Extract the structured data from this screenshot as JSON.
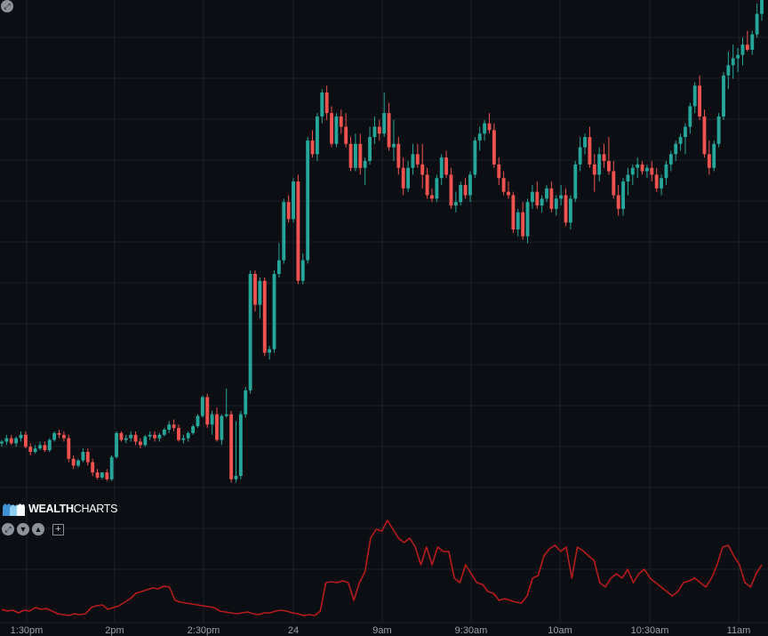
{
  "chart_data": [
    {
      "type": "candlestick",
      "x_tick_labels": [
        "1:30pm",
        "2pm",
        "2:30pm",
        "24",
        "9am",
        "9:30am",
        "10am",
        "10:30am",
        "11am"
      ],
      "y_range": [
        3,
        154
      ],
      "grid": true,
      "colors": {
        "up": "#26a69a",
        "down": "#ef5350",
        "grid": "#1c2029",
        "background": "#0b0e13",
        "axis_text": "#9aa0a8"
      },
      "candles": [
        [
          25.5,
          26.5,
          24.5,
          26
        ],
        [
          26,
          28,
          25,
          27
        ],
        [
          27,
          28,
          25,
          25.5
        ],
        [
          25.5,
          27.5,
          24.5,
          27
        ],
        [
          27,
          29,
          26,
          28
        ],
        [
          28,
          29,
          24,
          24.5
        ],
        [
          24.5,
          25.5,
          22,
          23
        ],
        [
          23,
          25,
          22.5,
          24
        ],
        [
          24,
          26,
          23.5,
          25
        ],
        [
          25,
          26,
          23,
          23.5
        ],
        [
          23.5,
          27,
          23,
          26.5
        ],
        [
          26.5,
          29,
          26,
          28.5
        ],
        [
          28.5,
          29.5,
          27,
          28
        ],
        [
          28,
          29,
          26,
          27
        ],
        [
          27,
          28,
          20,
          21
        ],
        [
          21,
          22,
          18,
          19
        ],
        [
          19,
          21,
          18.5,
          20.5
        ],
        [
          20.5,
          24,
          20,
          23
        ],
        [
          23,
          24,
          19,
          20
        ],
        [
          20,
          21,
          16,
          17
        ],
        [
          17,
          18,
          15,
          15.5
        ],
        [
          15.5,
          17,
          15,
          17
        ],
        [
          17,
          18,
          14.5,
          15
        ],
        [
          15,
          22,
          14.5,
          21.5
        ],
        [
          21.5,
          29,
          21,
          28.5
        ],
        [
          28.5,
          29,
          26,
          26.5
        ],
        [
          26.5,
          28,
          25.5,
          27
        ],
        [
          27,
          29,
          26,
          28
        ],
        [
          28,
          29,
          25,
          26
        ],
        [
          26,
          27,
          24,
          25
        ],
        [
          25,
          28,
          24.5,
          27.5
        ],
        [
          27.5,
          29,
          26.5,
          28
        ],
        [
          28,
          29,
          26,
          27
        ],
        [
          27,
          28.5,
          26,
          28
        ],
        [
          28,
          30,
          27.5,
          29.5
        ],
        [
          29.5,
          32,
          28.5,
          31
        ],
        [
          31,
          32.5,
          29,
          30
        ],
        [
          30,
          31,
          26,
          26.5
        ],
        [
          26.5,
          28,
          25.5,
          27
        ],
        [
          27,
          29,
          26,
          28.5
        ],
        [
          28.5,
          31,
          28,
          30.5
        ],
        [
          30.5,
          34,
          30,
          33.5
        ],
        [
          33.5,
          39.5,
          33,
          39
        ],
        [
          39,
          40,
          30,
          31
        ],
        [
          31,
          35,
          28,
          34
        ],
        [
          34,
          36,
          26,
          26.5
        ],
        [
          26.5,
          34,
          25,
          33.5
        ],
        [
          33.5,
          41.5,
          33,
          34
        ],
        [
          34,
          35,
          14,
          15
        ],
        [
          15,
          32,
          14,
          16
        ],
        [
          16,
          35,
          15,
          34
        ],
        [
          34,
          42,
          33,
          41
        ],
        [
          41,
          76,
          40,
          75
        ],
        [
          75,
          76,
          64,
          66
        ],
        [
          66,
          74,
          62,
          73
        ],
        [
          73,
          74,
          51,
          52
        ],
        [
          52,
          54,
          50,
          53
        ],
        [
          53,
          76,
          52,
          75
        ],
        [
          75,
          84,
          74,
          79
        ],
        [
          79,
          97,
          78,
          96
        ],
        [
          96,
          98,
          90,
          91
        ],
        [
          91,
          103,
          90,
          102
        ],
        [
          102,
          104,
          72,
          73
        ],
        [
          73,
          81,
          72,
          79
        ],
        [
          79,
          115,
          78,
          114
        ],
        [
          114,
          117,
          109,
          110
        ],
        [
          110,
          122,
          108,
          121
        ],
        [
          121,
          129,
          119,
          128
        ],
        [
          128,
          130,
          120,
          122
        ],
        [
          122,
          124,
          112,
          113
        ],
        [
          113,
          122,
          112,
          121
        ],
        [
          121,
          123,
          116,
          118
        ],
        [
          118,
          122,
          112,
          113
        ],
        [
          113,
          115,
          105,
          106
        ],
        [
          106,
          116,
          105,
          113
        ],
        [
          113,
          116,
          104,
          106
        ],
        [
          106,
          109,
          101,
          108
        ],
        [
          108,
          118,
          107,
          115
        ],
        [
          115,
          121,
          113,
          118
        ],
        [
          118,
          120,
          114,
          116
        ],
        [
          116,
          128,
          115,
          122
        ],
        [
          122,
          125,
          111,
          112
        ],
        [
          112,
          120,
          108,
          113
        ],
        [
          113,
          115,
          104,
          106
        ],
        [
          106,
          109,
          98,
          100
        ],
        [
          100,
          108,
          99,
          106
        ],
        [
          106,
          113,
          104,
          110
        ],
        [
          110,
          113,
          106,
          107
        ],
        [
          107,
          113,
          100,
          104
        ],
        [
          104,
          106,
          97,
          98
        ],
        [
          98,
          100,
          96,
          97
        ],
        [
          97,
          104,
          96,
          103
        ],
        [
          103,
          110,
          101,
          109
        ],
        [
          109,
          111,
          103,
          104
        ],
        [
          104,
          106,
          94,
          95
        ],
        [
          95,
          99,
          93,
          96
        ],
        [
          96,
          102,
          95,
          101
        ],
        [
          101,
          103,
          97,
          98
        ],
        [
          98,
          105,
          96,
          104
        ],
        [
          104,
          115,
          103,
          114
        ],
        [
          114,
          118,
          111,
          116
        ],
        [
          116,
          120,
          114,
          119
        ],
        [
          119,
          122,
          116,
          117
        ],
        [
          117,
          119,
          106,
          107
        ],
        [
          107,
          109,
          101,
          103
        ],
        [
          103,
          105,
          98,
          99
        ],
        [
          99,
          102,
          97,
          98
        ],
        [
          98,
          99,
          87,
          88
        ],
        [
          88,
          94,
          86,
          93
        ],
        [
          93,
          96,
          85,
          86
        ],
        [
          86,
          97,
          84,
          96
        ],
        [
          96,
          101,
          94,
          99
        ],
        [
          99,
          102,
          94,
          95
        ],
        [
          95,
          98,
          93,
          97
        ],
        [
          97,
          101,
          96,
          100
        ],
        [
          100,
          102,
          93,
          94
        ],
        [
          94,
          98,
          92,
          97
        ],
        [
          97,
          101,
          95,
          98
        ],
        [
          98,
          100,
          89,
          90
        ],
        [
          90,
          98,
          88,
          97
        ],
        [
          97,
          108,
          96,
          107
        ],
        [
          107,
          115,
          105,
          112
        ],
        [
          112,
          116,
          110,
          115
        ],
        [
          115,
          118,
          106,
          107
        ],
        [
          107,
          110,
          99,
          104
        ],
        [
          104,
          112,
          102,
          110
        ],
        [
          110,
          113,
          106,
          108
        ],
        [
          108,
          115,
          104,
          105
        ],
        [
          105,
          108,
          97,
          98
        ],
        [
          98,
          101,
          92,
          94
        ],
        [
          94,
          103,
          92,
          102
        ],
        [
          102,
          106,
          98,
          104
        ],
        [
          104,
          107,
          101,
          106
        ],
        [
          106,
          109,
          103,
          107
        ],
        [
          107,
          108,
          104,
          105
        ],
        [
          105,
          107,
          103,
          106
        ],
        [
          106,
          108,
          102,
          104
        ],
        [
          104,
          106,
          99,
          100
        ],
        [
          100,
          104,
          98,
          103
        ],
        [
          103,
          108,
          101,
          107
        ],
        [
          107,
          111,
          105,
          110
        ],
        [
          110,
          114,
          108,
          113
        ],
        [
          113,
          116,
          111,
          115
        ],
        [
          115,
          119,
          110,
          118
        ],
        [
          118,
          125,
          116,
          124
        ],
        [
          124,
          131,
          122,
          130
        ],
        [
          130,
          133,
          120,
          121
        ],
        [
          121,
          123,
          109,
          110
        ],
        [
          110,
          114,
          104,
          106
        ],
        [
          106,
          114,
          105,
          113
        ],
        [
          113,
          122,
          112,
          121
        ],
        [
          121,
          134,
          120,
          133
        ],
        [
          133,
          140,
          129,
          136
        ],
        [
          136,
          142,
          132,
          138
        ],
        [
          138,
          141,
          134,
          139
        ],
        [
          139,
          144,
          136,
          142
        ],
        [
          142,
          146,
          140,
          140.5
        ],
        [
          140.5,
          146,
          139,
          145
        ],
        [
          145,
          154,
          144,
          151
        ],
        [
          151,
          158,
          149,
          156
        ]
      ]
    },
    {
      "type": "line",
      "name": "",
      "color": "#b71c1c",
      "y_range": [
        0,
        110
      ],
      "values": [
        10,
        8,
        9,
        6,
        9,
        8,
        12,
        10,
        11,
        8,
        5,
        4,
        3,
        5,
        4,
        5,
        12,
        14,
        15,
        10,
        12,
        14,
        18,
        22,
        28,
        30,
        32,
        34,
        33,
        36,
        35,
        20,
        18,
        17,
        16,
        15,
        14,
        13,
        12,
        8,
        7,
        6,
        5,
        6,
        7,
        5,
        4,
        6,
        6,
        8,
        9,
        8,
        6,
        5,
        3,
        4,
        3,
        8,
        40,
        41,
        40,
        42,
        40,
        20,
        40,
        52,
        90,
        100,
        98,
        110,
        100,
        90,
        85,
        90,
        80,
        60,
        80,
        60,
        80,
        75,
        75,
        45,
        40,
        60,
        50,
        40,
        38,
        30,
        28,
        20,
        22,
        20,
        18,
        17,
        25,
        45,
        48,
        70,
        78,
        82,
        75,
        80,
        45,
        80,
        76,
        70,
        65,
        40,
        35,
        45,
        50,
        45,
        55,
        40,
        50,
        55,
        45,
        40,
        35,
        30,
        25,
        30,
        40,
        42,
        45,
        40,
        35,
        45,
        60,
        80,
        82,
        70,
        60,
        40,
        35,
        50,
        60
      ]
    }
  ],
  "ui": {
    "brand_bold": "WEALTH",
    "brand_light": "CHARTS",
    "logo_icon": "wealthcharts-bulls-logo",
    "controls": [
      "collapse-arrows-icon",
      "scroll-down-icon",
      "scroll-up-icon",
      "add-pane-icon"
    ],
    "plus_symbol": "+"
  }
}
